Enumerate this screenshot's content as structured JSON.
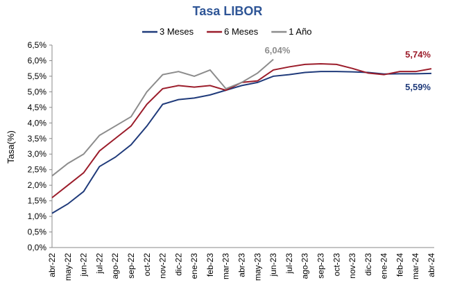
{
  "chart_data": {
    "type": "line",
    "title": "Tasa LIBOR",
    "y_label": "Tasa(%)",
    "categories": [
      "abr-22",
      "may-22",
      "jun-22",
      "jul-22",
      "ago-22",
      "sep-22",
      "oct-22",
      "nov-22",
      "dic-22",
      "ene-23",
      "feb-23",
      "mar-23",
      "abr-23",
      "may-23",
      "jun-23",
      "jul-23",
      "ago-23",
      "sep-23",
      "oct-23",
      "nov-23",
      "dic-23",
      "ene-24",
      "feb-24",
      "mar-24",
      "abr-24"
    ],
    "series": [
      {
        "name": "3 Meses",
        "color": "#1f3a7a",
        "values": [
          1.1,
          1.4,
          1.8,
          2.6,
          2.9,
          3.3,
          3.9,
          4.6,
          4.75,
          4.8,
          4.9,
          5.05,
          5.2,
          5.3,
          5.5,
          5.55,
          5.62,
          5.65,
          5.65,
          5.64,
          5.62,
          5.57,
          5.58,
          5.58,
          5.59
        ]
      },
      {
        "name": "6 Meses",
        "color": "#9b1c2a",
        "values": [
          1.6,
          2.0,
          2.4,
          3.1,
          3.5,
          3.9,
          4.6,
          5.1,
          5.2,
          5.15,
          5.2,
          5.05,
          5.3,
          5.35,
          5.7,
          5.8,
          5.88,
          5.9,
          5.88,
          5.75,
          5.6,
          5.55,
          5.65,
          5.65,
          5.74
        ]
      },
      {
        "name": "1 Año",
        "color": "#8c8c8c",
        "values": [
          2.3,
          2.7,
          3.0,
          3.6,
          3.9,
          4.2,
          5.0,
          5.55,
          5.65,
          5.5,
          5.7,
          5.1,
          5.3,
          5.6,
          6.04,
          null,
          null,
          null,
          null,
          null,
          null,
          null,
          null,
          null,
          null
        ]
      }
    ],
    "annotations": [
      {
        "text": "6,04%",
        "color": "#8c8c8c"
      },
      {
        "text": "5,74%",
        "color": "#9b1c2a"
      },
      {
        "text": "5,59%",
        "color": "#1f3a7a"
      }
    ],
    "ylim": [
      0,
      6.5
    ],
    "yticks": [
      {
        "value": 0,
        "label": "0,0%"
      },
      {
        "value": 0.5,
        "label": "0,5%"
      },
      {
        "value": 1,
        "label": "1,0%"
      },
      {
        "value": 1.5,
        "label": "1,5%"
      },
      {
        "value": 2,
        "label": "2,0%"
      },
      {
        "value": 2.5,
        "label": "2,5%"
      },
      {
        "value": 3,
        "label": "3,0%"
      },
      {
        "value": 3.5,
        "label": "3,5%"
      },
      {
        "value": 4,
        "label": "4,0%"
      },
      {
        "value": 4.5,
        "label": "4,5%"
      },
      {
        "value": 5,
        "label": "5,0%"
      },
      {
        "value": 5.5,
        "label": "5,5%"
      },
      {
        "value": 6,
        "label": "6,0%"
      },
      {
        "value": 6.5,
        "label": "6,5%"
      }
    ],
    "legend": "top",
    "grid": false
  }
}
